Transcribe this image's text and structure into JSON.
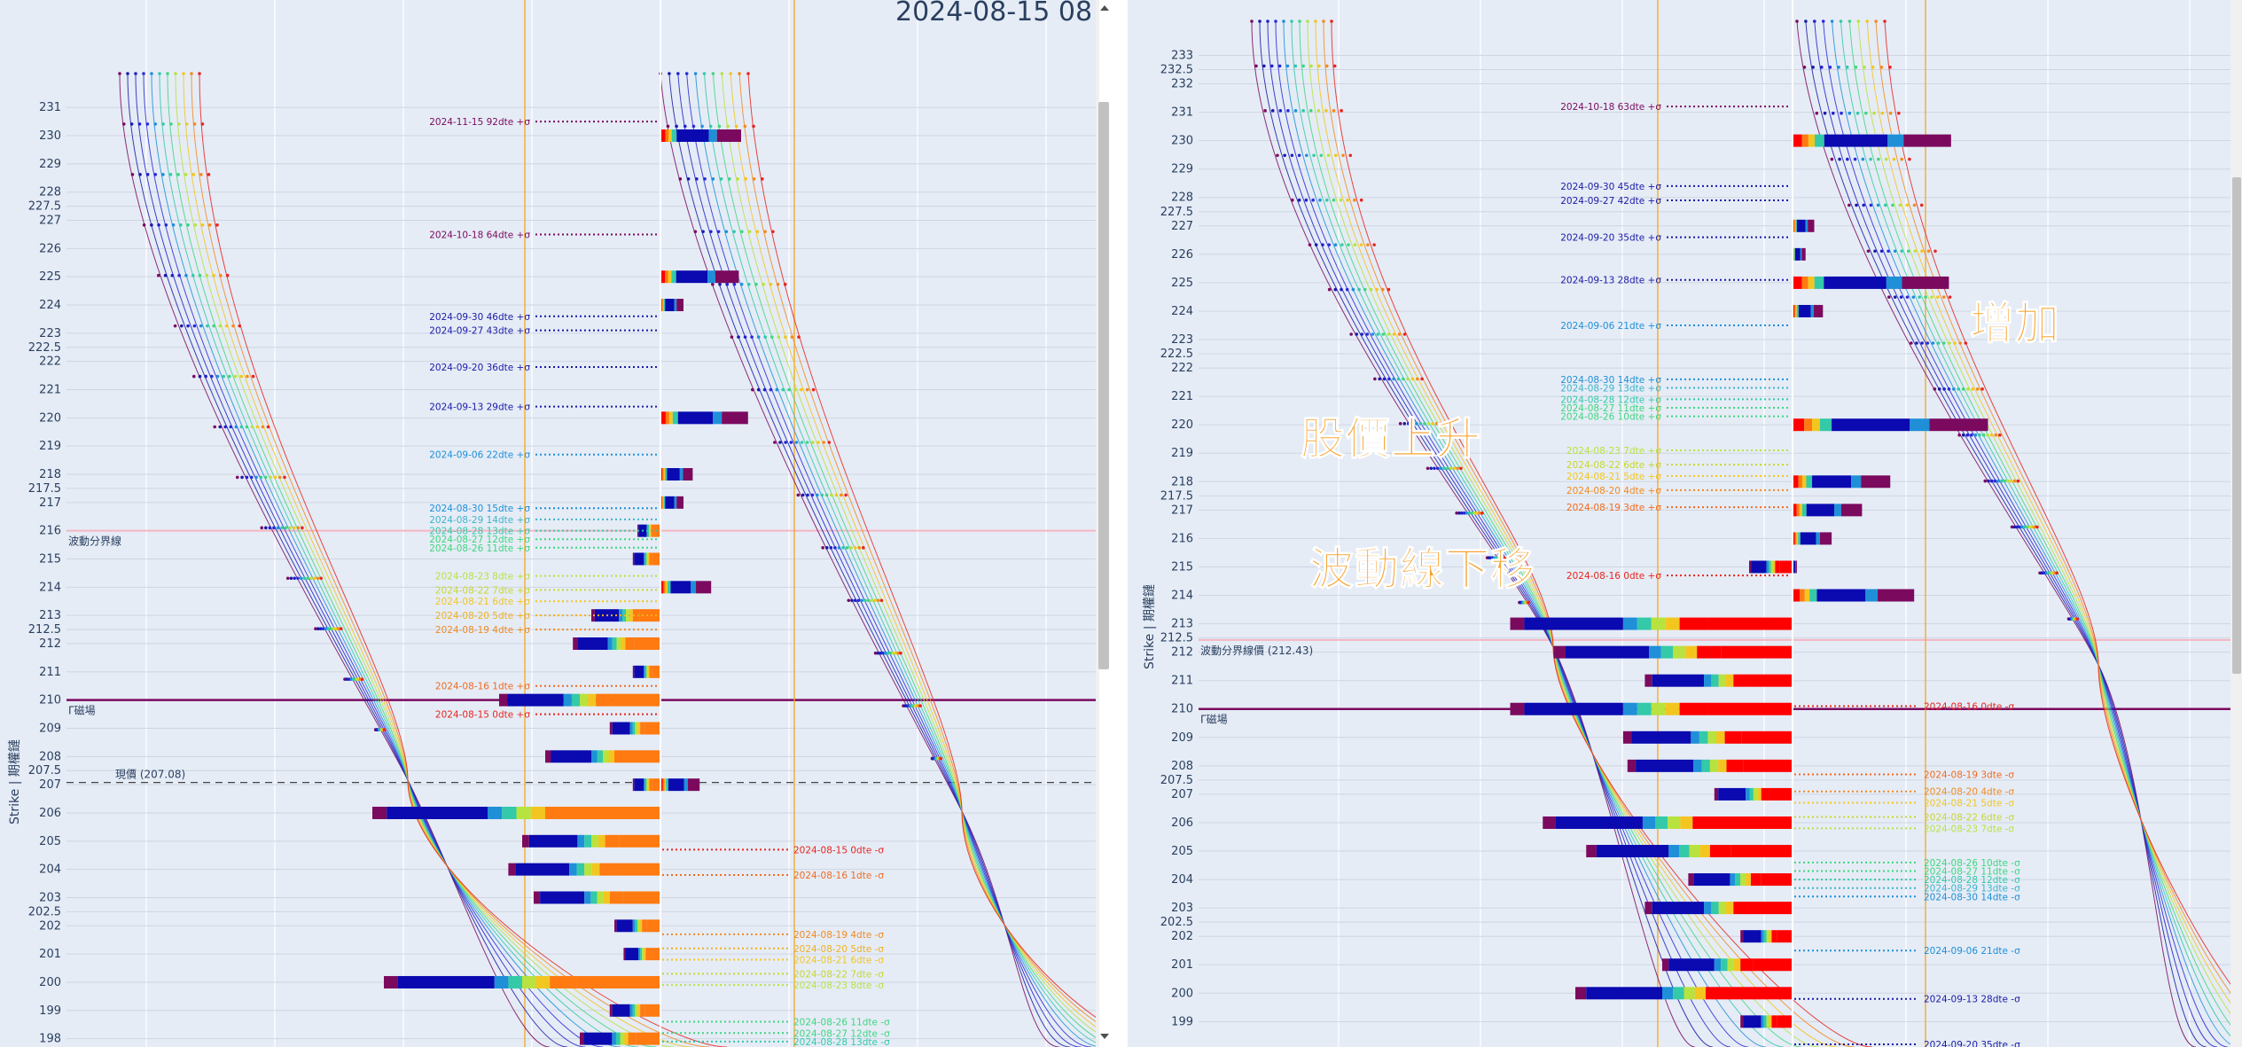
{
  "left_panel": {
    "date_title": "2024-08-15 08",
    "yaxis_title": "Strike | 期權鏈",
    "vol_boundary_label": "波動分界線",
    "gamma_label": "Γ磁場",
    "price_label": "現價 (207.08)",
    "scroll_thumb_label": "scrollbar"
  },
  "right_panel": {
    "yaxis_title": "Strike | 期權鏈",
    "vol_boundary_label": "波動分界線價 (212.43)",
    "gamma_label": "Γ磁場",
    "annotation_price_up": "股價上升",
    "annotation_vol_down": "波動線下移",
    "annotation_increase": "增加"
  },
  "colors": {
    "plot_bg": "#e5ecf6",
    "grid": "#ffffff",
    "gamma_line": "#7b0a5f",
    "vol_boundary": "#f4b6c2",
    "price_dash": "#444444",
    "orange_vline": "#f5a623",
    "annotation": "#f7a22e"
  },
  "chart_data": [
    {
      "type": "bar",
      "title": "2024-08-15 08",
      "ylabel": "Strike | 期權鏈",
      "strikes": [
        "231",
        "230",
        "229",
        "228",
        "227.5",
        "227",
        "226",
        "225",
        "224",
        "223",
        "222.5",
        "222",
        "221",
        "220",
        "219",
        "218",
        "217.5",
        "217",
        "216",
        "215",
        "214",
        "213",
        "212.5",
        "212",
        "211",
        "210",
        "209",
        "208",
        "207.5",
        "207",
        "206",
        "205",
        "204",
        "203",
        "202.5",
        "202",
        "201",
        "200",
        "199",
        "198"
      ],
      "ylim": [
        197.8,
        232.2
      ],
      "current_price": 207.08,
      "gamma_strike": 210,
      "vol_boundary": 216,
      "bars_left_side": [
        {
          "strike": 210,
          "value": 0.7
        },
        {
          "strike": 206,
          "value": 1.25
        },
        {
          "strike": 200,
          "value": 1.2
        },
        {
          "strike": 205,
          "value": 0.6
        },
        {
          "strike": 204,
          "value": 0.66
        },
        {
          "strike": 203,
          "value": 0.55
        },
        {
          "strike": 208,
          "value": 0.5
        },
        {
          "strike": 212,
          "value": 0.38
        },
        {
          "strike": 213,
          "value": 0.3
        },
        {
          "strike": 209,
          "value": 0.22
        },
        {
          "strike": 211,
          "value": 0.12
        },
        {
          "strike": 215,
          "value": 0.12
        },
        {
          "strike": 216,
          "value": 0.1
        },
        {
          "strike": 207,
          "value": 0.12
        },
        {
          "strike": 202,
          "value": 0.2
        },
        {
          "strike": 201,
          "value": 0.16
        },
        {
          "strike": 199,
          "value": 0.22
        },
        {
          "strike": 198,
          "value": 0.35
        }
      ],
      "bars_right_side": [
        {
          "strike": 230,
          "value": 0.35
        },
        {
          "strike": 225,
          "value": 0.34
        },
        {
          "strike": 220,
          "value": 0.38
        },
        {
          "strike": 214,
          "value": 0.22
        },
        {
          "strike": 218,
          "value": 0.14
        },
        {
          "strike": 224,
          "value": 0.1
        },
        {
          "strike": 217,
          "value": 0.1
        },
        {
          "strike": 207,
          "value": 0.17
        }
      ],
      "expiry_labels_upper": [
        {
          "text": "2024-11-15 92dte +σ",
          "strike": 230.5,
          "color": "#7b0a5f"
        },
        {
          "text": "2024-10-18 64dte +σ",
          "strike": 226.5,
          "color": "#7b0a5f"
        },
        {
          "text": "2024-09-30 46dte +σ",
          "strike": 223.6,
          "color": "#1a1aa6"
        },
        {
          "text": "2024-09-27 43dte +σ",
          "strike": 223.1,
          "color": "#1a1aa6"
        },
        {
          "text": "2024-09-20 36dte +σ",
          "strike": 221.8,
          "color": "#1a1aa6"
        },
        {
          "text": "2024-09-13 29dte +σ",
          "strike": 220.4,
          "color": "#1a1aa6"
        },
        {
          "text": "2024-09-06 22dte +σ",
          "strike": 218.7,
          "color": "#1f8fd8"
        },
        {
          "text": "2024-08-30 15dte +σ",
          "strike": 216.8,
          "color": "#1f8fd8"
        },
        {
          "text": "2024-08-29 14dte +σ",
          "strike": 216.4,
          "color": "#3fb3c9"
        },
        {
          "text": "2024-08-28 13dte +σ",
          "strike": 216.0,
          "color": "#33c9a9"
        },
        {
          "text": "2024-08-27 12dte +σ",
          "strike": 215.7,
          "color": "#3fd67f"
        },
        {
          "text": "2024-08-26 11dte +σ",
          "strike": 215.4,
          "color": "#3fd67f"
        },
        {
          "text": "2024-08-23 8dte +σ",
          "strike": 214.4,
          "color": "#b8e23f"
        },
        {
          "text": "2024-08-22 7dte +σ",
          "strike": 213.9,
          "color": "#c9d62f"
        },
        {
          "text": "2024-08-21 6dte +σ",
          "strike": 213.5,
          "color": "#f2c61f"
        },
        {
          "text": "2024-08-20 5dte +σ",
          "strike": 213.0,
          "color": "#f2b01f"
        },
        {
          "text": "2024-08-19 4dte +σ",
          "strike": 212.5,
          "color": "#f28a1f"
        },
        {
          "text": "2024-08-16 1dte +σ",
          "strike": 210.5,
          "color": "#f26a1f"
        },
        {
          "text": "2024-08-15 0dte +σ",
          "strike": 209.5,
          "color": "#e8261f"
        }
      ],
      "expiry_labels_lower": [
        {
          "text": "2024-08-15 0dte -σ",
          "strike": 204.7,
          "color": "#e8261f"
        },
        {
          "text": "2024-08-16 1dte -σ",
          "strike": 203.8,
          "color": "#f26a1f"
        },
        {
          "text": "2024-08-19 4dte -σ",
          "strike": 201.7,
          "color": "#f28a1f"
        },
        {
          "text": "2024-08-20 5dte -σ",
          "strike": 201.2,
          "color": "#f2b01f"
        },
        {
          "text": "2024-08-21 6dte -σ",
          "strike": 200.8,
          "color": "#f2c61f"
        },
        {
          "text": "2024-08-22 7dte -σ",
          "strike": 200.3,
          "color": "#c9d62f"
        },
        {
          "text": "2024-08-23 8dte -σ",
          "strike": 199.9,
          "color": "#b8e23f"
        },
        {
          "text": "2024-08-26 11dte -σ",
          "strike": 198.6,
          "color": "#3fd67f"
        },
        {
          "text": "2024-08-27 12dte -σ",
          "strike": 198.2,
          "color": "#3fd67f"
        },
        {
          "text": "2024-08-28 13dte -σ",
          "strike": 197.9,
          "color": "#33c9a9"
        }
      ]
    },
    {
      "type": "bar",
      "ylabel": "Strike | 期權鏈",
      "strikes": [
        "233",
        "232.5",
        "232",
        "231",
        "230",
        "229",
        "228",
        "227.5",
        "227",
        "226",
        "225",
        "224",
        "223",
        "222.5",
        "222",
        "221",
        "220",
        "219",
        "218",
        "217.5",
        "217",
        "216",
        "215",
        "214",
        "213",
        "212.5",
        "212",
        "211",
        "210",
        "209",
        "208",
        "207.5",
        "207",
        "206",
        "205",
        "204",
        "203",
        "202.5",
        "202",
        "201",
        "200",
        "199"
      ],
      "ylim": [
        198.2,
        234.2
      ],
      "vol_boundary": 212.43,
      "gamma_strike": 210,
      "bars_left_side": [
        {
          "strike": 210,
          "value": 1.3
        },
        {
          "strike": 212,
          "value": 1.1
        },
        {
          "strike": 213,
          "value": 1.3
        },
        {
          "strike": 206,
          "value": 1.15
        },
        {
          "strike": 200,
          "value": 1.0
        },
        {
          "strike": 205,
          "value": 0.95
        },
        {
          "strike": 203,
          "value": 0.68
        },
        {
          "strike": 209,
          "value": 0.78
        },
        {
          "strike": 208,
          "value": 0.76
        },
        {
          "strike": 211,
          "value": 0.68
        },
        {
          "strike": 204,
          "value": 0.48
        },
        {
          "strike": 201,
          "value": 0.6
        },
        {
          "strike": 207,
          "value": 0.36
        },
        {
          "strike": 215,
          "value": 0.2
        },
        {
          "strike": 202,
          "value": 0.24
        },
        {
          "strike": 199,
          "value": 0.24
        }
      ],
      "bars_right_side": [
        {
          "strike": 230,
          "value": 0.73
        },
        {
          "strike": 225,
          "value": 0.72
        },
        {
          "strike": 220,
          "value": 0.9
        },
        {
          "strike": 214,
          "value": 0.56
        },
        {
          "strike": 218,
          "value": 0.45
        },
        {
          "strike": 224,
          "value": 0.14
        },
        {
          "strike": 216,
          "value": 0.18
        },
        {
          "strike": 217,
          "value": 0.32
        },
        {
          "strike": 227,
          "value": 0.1
        },
        {
          "strike": 226,
          "value": 0.06
        },
        {
          "strike": 215,
          "value": 0.02
        }
      ],
      "expiry_labels_upper": [
        {
          "text": "2024-10-18 63dte +σ",
          "strike": 231.2,
          "color": "#7b0a5f"
        },
        {
          "text": "2024-09-30 45dte +σ",
          "strike": 228.4,
          "color": "#1a1aa6"
        },
        {
          "text": "2024-09-27 42dte +σ",
          "strike": 227.9,
          "color": "#1a1aa6"
        },
        {
          "text": "2024-09-20 35dte +σ",
          "strike": 226.6,
          "color": "#1a1aa6"
        },
        {
          "text": "2024-09-13 28dte +σ",
          "strike": 225.1,
          "color": "#1a1aa6"
        },
        {
          "text": "2024-09-06 21dte +σ",
          "strike": 223.5,
          "color": "#1f8fd8"
        },
        {
          "text": "2024-08-30 14dte +σ",
          "strike": 221.6,
          "color": "#1f8fd8"
        },
        {
          "text": "2024-08-29 13dte +σ",
          "strike": 221.3,
          "color": "#3fb3c9"
        },
        {
          "text": "2024-08-28 12dte +σ",
          "strike": 220.9,
          "color": "#33c9a9"
        },
        {
          "text": "2024-08-27 11dte +σ",
          "strike": 220.6,
          "color": "#3fd67f"
        },
        {
          "text": "2024-08-26 10dte +σ",
          "strike": 220.3,
          "color": "#3fd67f"
        },
        {
          "text": "2024-08-23 7dte +σ",
          "strike": 219.1,
          "color": "#b8e23f"
        },
        {
          "text": "2024-08-22 6dte +σ",
          "strike": 218.6,
          "color": "#c9d62f"
        },
        {
          "text": "2024-08-21 5dte +σ",
          "strike": 218.2,
          "color": "#f2c61f"
        },
        {
          "text": "2024-08-20 4dte +σ",
          "strike": 217.7,
          "color": "#f28a1f"
        },
        {
          "text": "2024-08-19 3dte +σ",
          "strike": 217.1,
          "color": "#f26a1f"
        },
        {
          "text": "2024-08-16 0dte +σ",
          "strike": 214.7,
          "color": "#e8261f"
        }
      ],
      "expiry_labels_lower": [
        {
          "text": "2024-08-16 0dte -σ",
          "strike": 210.1,
          "color": "#e8261f"
        },
        {
          "text": "2024-08-19 3dte -σ",
          "strike": 207.7,
          "color": "#f26a1f"
        },
        {
          "text": "2024-08-20 4dte -σ",
          "strike": 207.1,
          "color": "#f28a1f"
        },
        {
          "text": "2024-08-21 5dte -σ",
          "strike": 206.7,
          "color": "#f2c61f"
        },
        {
          "text": "2024-08-22 6dte -σ",
          "strike": 206.2,
          "color": "#c9d62f"
        },
        {
          "text": "2024-08-23 7dte -σ",
          "strike": 205.8,
          "color": "#b8e23f"
        },
        {
          "text": "2024-08-26 10dte -σ",
          "strike": 204.6,
          "color": "#3fd67f"
        },
        {
          "text": "2024-08-27 11dte -σ",
          "strike": 204.3,
          "color": "#3fd67f"
        },
        {
          "text": "2024-08-28 12dte -σ",
          "strike": 204.0,
          "color": "#33c9a9"
        },
        {
          "text": "2024-08-29 13dte -σ",
          "strike": 203.7,
          "color": "#3fb3c9"
        },
        {
          "text": "2024-08-30 14dte -σ",
          "strike": 203.4,
          "color": "#1f8fd8"
        },
        {
          "text": "2024-09-06 21dte -σ",
          "strike": 201.5,
          "color": "#1f8fd8"
        },
        {
          "text": "2024-09-13 28dte -σ",
          "strike": 199.8,
          "color": "#1a1aa6"
        },
        {
          "text": "2024-09-20 35dte -σ",
          "strike": 198.2,
          "color": "#1a1aa6"
        }
      ]
    }
  ]
}
